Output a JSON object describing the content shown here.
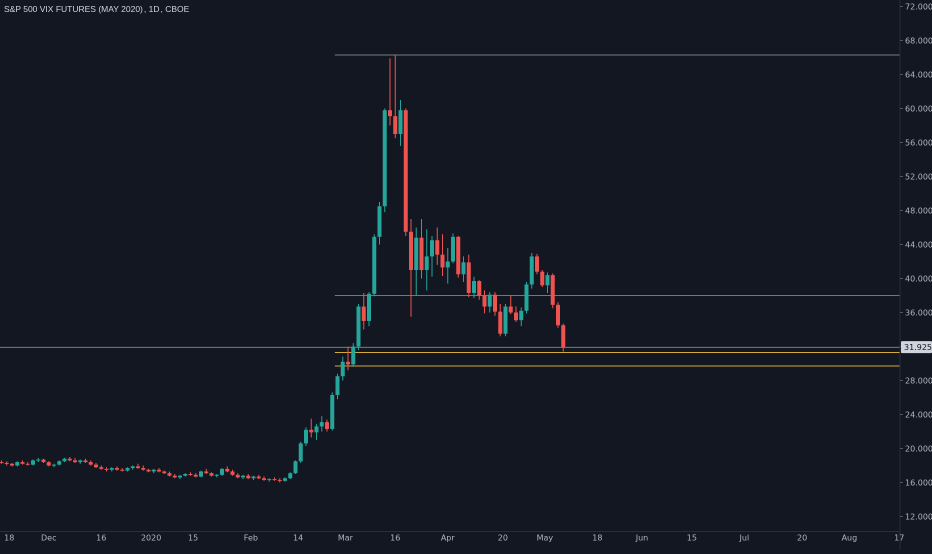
{
  "header": {
    "symbol": "S&P 500 VIX FUTURES (MAY 2020)",
    "interval": "1D",
    "exchange": "CBOE"
  },
  "colors": {
    "background": "#131722",
    "up": "#26a69a",
    "down": "#ef5350",
    "axis_text": "#b2b5be",
    "red_line": "#ff3b3b",
    "gold_line": "#d4a93a",
    "gray_line": "#787b86",
    "price_tag": "#d1d4dc"
  },
  "chart_data": {
    "type": "candlestick",
    "y_axis": {
      "position": "right",
      "range": [
        11.5,
        72.5
      ],
      "ticks": [
        "72.000",
        "68.000",
        "64.000",
        "60.000",
        "56.000",
        "52.000",
        "48.000",
        "44.000",
        "40.000",
        "36.000",
        "32.000",
        "28.000",
        "24.000",
        "20.000",
        "16.000",
        "12.000"
      ]
    },
    "x_axis": {
      "ticks": [
        {
          "label": "18",
          "x": 0.5
        },
        {
          "label": "Dec",
          "x": 9
        },
        {
          "label": "16",
          "x": 19
        },
        {
          "label": "2020",
          "x": 28.5
        },
        {
          "label": "15",
          "x": 36.5
        },
        {
          "label": "Feb",
          "x": 47.5
        },
        {
          "label": "14",
          "x": 56.5
        },
        {
          "label": "Mar",
          "x": 65.5
        },
        {
          "label": "16",
          "x": 75
        },
        {
          "label": "Apr",
          "x": 85
        },
        {
          "label": "20",
          "x": 95.5
        },
        {
          "label": "May",
          "x": 103.5
        },
        {
          "label": "18",
          "x": 113.5
        },
        {
          "label": "Jun",
          "x": 122
        },
        {
          "label": "15",
          "x": 131.5
        },
        {
          "label": "Jul",
          "x": 141.5
        },
        {
          "label": "20",
          "x": 152.5
        },
        {
          "label": "Aug",
          "x": 161.5
        },
        {
          "label": "17",
          "x": 171
        }
      ]
    },
    "last_price": "31.925",
    "horizontal_lines": [
      {
        "value": 66.3,
        "color_key": "gray_line",
        "start_x": 63.5
      },
      {
        "value": 38.0,
        "color_key": "red_line",
        "start_x": 63.5
      },
      {
        "value": 31.9,
        "color_key": "gray_line",
        "start_x": -2
      },
      {
        "value": 31.3,
        "color_key": "gold_line",
        "start_x": 63.5
      },
      {
        "value": 29.7,
        "color_key": "gold_line",
        "start_x": 63.5
      }
    ],
    "candles": [
      [
        18.4,
        18.6,
        18.2,
        18.3
      ],
      [
        18.3,
        18.5,
        18.0,
        18.2
      ],
      [
        18.2,
        18.3,
        17.9,
        18.0
      ],
      [
        18.0,
        18.5,
        17.9,
        18.4
      ],
      [
        18.4,
        18.6,
        18.1,
        18.2
      ],
      [
        18.2,
        18.4,
        18.0,
        18.1
      ],
      [
        18.1,
        18.7,
        18.0,
        18.6
      ],
      [
        18.6,
        18.9,
        18.4,
        18.7
      ],
      [
        18.7,
        18.8,
        18.3,
        18.4
      ],
      [
        18.4,
        18.5,
        17.9,
        18.0
      ],
      [
        18.0,
        18.2,
        17.8,
        18.1
      ],
      [
        18.1,
        18.6,
        18.0,
        18.5
      ],
      [
        18.5,
        18.9,
        18.4,
        18.8
      ],
      [
        18.8,
        19.0,
        18.5,
        18.6
      ],
      [
        18.6,
        18.9,
        18.3,
        18.4
      ],
      [
        18.4,
        18.7,
        18.2,
        18.6
      ],
      [
        18.6,
        18.8,
        18.3,
        18.4
      ],
      [
        18.4,
        18.6,
        18.0,
        18.1
      ],
      [
        18.1,
        18.3,
        17.7,
        17.8
      ],
      [
        17.8,
        18.0,
        17.5,
        17.6
      ],
      [
        17.6,
        17.8,
        17.3,
        17.5
      ],
      [
        17.5,
        17.8,
        17.3,
        17.7
      ],
      [
        17.7,
        17.9,
        17.4,
        17.5
      ],
      [
        17.5,
        17.7,
        17.3,
        17.4
      ],
      [
        17.4,
        17.8,
        17.3,
        17.7
      ],
      [
        17.7,
        18.0,
        17.5,
        17.9
      ],
      [
        17.9,
        18.2,
        17.6,
        17.7
      ],
      [
        17.7,
        18.0,
        17.4,
        17.5
      ],
      [
        17.5,
        17.6,
        17.2,
        17.3
      ],
      [
        17.3,
        17.6,
        17.1,
        17.5
      ],
      [
        17.5,
        17.7,
        17.2,
        17.3
      ],
      [
        17.3,
        17.4,
        17.0,
        17.1
      ],
      [
        17.1,
        17.3,
        16.7,
        16.8
      ],
      [
        16.8,
        17.0,
        16.5,
        16.6
      ],
      [
        16.6,
        16.9,
        16.4,
        16.8
      ],
      [
        16.8,
        17.1,
        16.7,
        17.0
      ],
      [
        17.0,
        17.2,
        16.8,
        16.9
      ],
      [
        16.9,
        17.1,
        16.6,
        16.7
      ],
      [
        16.7,
        17.4,
        16.6,
        17.3
      ],
      [
        17.3,
        17.6,
        17.0,
        17.1
      ],
      [
        17.1,
        17.2,
        16.7,
        16.8
      ],
      [
        16.8,
        17.0,
        16.6,
        16.9
      ],
      [
        16.9,
        17.7,
        16.8,
        17.6
      ],
      [
        17.6,
        17.9,
        17.2,
        17.3
      ],
      [
        17.3,
        17.5,
        16.8,
        16.9
      ],
      [
        16.9,
        17.1,
        16.5,
        16.6
      ],
      [
        16.6,
        16.9,
        16.4,
        16.8
      ],
      [
        16.8,
        17.0,
        16.4,
        16.5
      ],
      [
        16.5,
        16.8,
        16.3,
        16.7
      ],
      [
        16.7,
        16.9,
        16.4,
        16.5
      ],
      [
        16.5,
        16.7,
        16.2,
        16.3
      ],
      [
        16.3,
        16.5,
        16.1,
        16.4
      ],
      [
        16.4,
        16.6,
        16.2,
        16.3
      ],
      [
        16.3,
        16.5,
        16.0,
        16.2
      ],
      [
        16.2,
        16.6,
        16.1,
        16.5
      ],
      [
        16.5,
        17.2,
        16.4,
        17.1
      ],
      [
        17.1,
        18.6,
        17.0,
        18.5
      ],
      [
        18.5,
        20.8,
        18.3,
        20.6
      ],
      [
        20.6,
        22.5,
        20.3,
        22.2
      ],
      [
        22.2,
        23.5,
        21.3,
        21.9
      ],
      [
        21.9,
        22.9,
        21.0,
        22.6
      ],
      [
        22.6,
        23.8,
        22.0,
        23.1
      ],
      [
        23.1,
        23.4,
        22.0,
        22.3
      ],
      [
        22.3,
        26.6,
        22.1,
        26.3
      ],
      [
        26.3,
        28.8,
        25.8,
        28.5
      ],
      [
        28.5,
        30.8,
        28.0,
        30.2
      ],
      [
        30.2,
        32.0,
        29.2,
        29.9
      ],
      [
        29.9,
        32.4,
        29.6,
        32.0
      ],
      [
        32.0,
        37.0,
        31.6,
        36.7
      ],
      [
        36.7,
        38.3,
        34.0,
        35.0
      ],
      [
        35.0,
        38.4,
        34.4,
        38.2
      ],
      [
        38.2,
        45.2,
        37.9,
        44.9
      ],
      [
        44.9,
        49.0,
        44.0,
        48.5
      ],
      [
        48.5,
        60.0,
        47.8,
        59.8
      ],
      [
        59.8,
        65.9,
        58.0,
        59.1
      ],
      [
        59.1,
        66.3,
        56.5,
        57.0
      ],
      [
        57.0,
        61.0,
        55.6,
        59.8
      ],
      [
        59.8,
        60.0,
        45.0,
        45.5
      ],
      [
        45.5,
        47.0,
        35.5,
        41.0
      ],
      [
        41.0,
        46.0,
        38.0,
        44.8
      ],
      [
        44.8,
        47.0,
        40.0,
        41.0
      ],
      [
        41.0,
        45.8,
        38.6,
        42.6
      ],
      [
        42.6,
        45.0,
        40.2,
        44.5
      ],
      [
        44.5,
        46.0,
        41.6,
        42.8
      ],
      [
        42.8,
        45.2,
        40.3,
        41.3
      ],
      [
        41.3,
        43.6,
        39.4,
        42.0
      ],
      [
        42.0,
        45.3,
        41.8,
        44.9
      ],
      [
        44.9,
        45.0,
        40.1,
        40.5
      ],
      [
        40.5,
        42.6,
        39.6,
        41.9
      ],
      [
        41.9,
        42.8,
        37.8,
        38.3
      ],
      [
        38.3,
        40.2,
        37.7,
        39.7
      ],
      [
        39.7,
        39.8,
        37.5,
        38.0
      ],
      [
        38.0,
        38.6,
        35.9,
        36.7
      ],
      [
        36.7,
        38.4,
        36.0,
        38.1
      ],
      [
        38.1,
        38.4,
        35.6,
        36.1
      ],
      [
        36.1,
        37.0,
        33.2,
        33.5
      ],
      [
        33.5,
        37.0,
        33.2,
        36.7
      ],
      [
        36.7,
        38.0,
        35.8,
        36.0
      ],
      [
        36.0,
        36.7,
        34.9,
        35.1
      ],
      [
        35.1,
        36.6,
        34.4,
        36.2
      ],
      [
        36.2,
        39.6,
        35.9,
        39.3
      ],
      [
        39.3,
        43.0,
        38.8,
        42.6
      ],
      [
        42.6,
        42.9,
        40.5,
        40.8
      ],
      [
        40.8,
        41.0,
        39.0,
        39.2
      ],
      [
        39.2,
        40.7,
        38.3,
        40.4
      ],
      [
        40.4,
        40.6,
        36.5,
        36.9
      ],
      [
        36.9,
        37.2,
        34.2,
        34.5
      ],
      [
        34.5,
        34.7,
        31.4,
        31.9
      ]
    ]
  }
}
